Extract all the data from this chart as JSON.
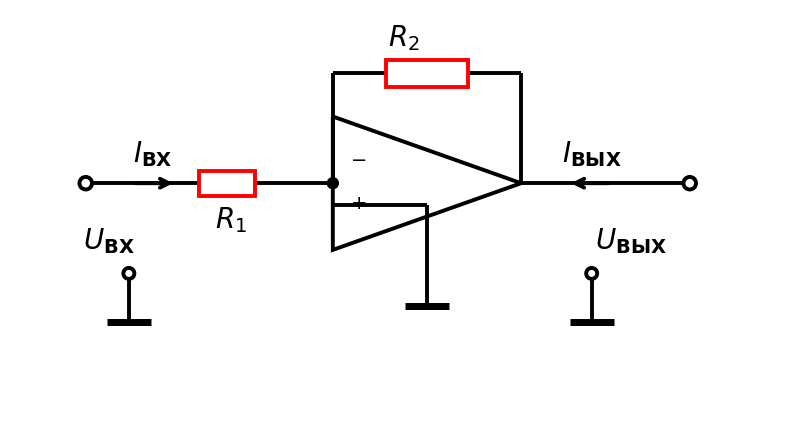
{
  "bg_color": "#ffffff",
  "line_color": "#000000",
  "resistor_color": "#ff0000",
  "lw": 2.8,
  "fig_width": 7.99,
  "fig_height": 4.37,
  "dpi": 100,
  "xlim": [
    0,
    10
  ],
  "ylim": [
    0,
    5.5
  ]
}
